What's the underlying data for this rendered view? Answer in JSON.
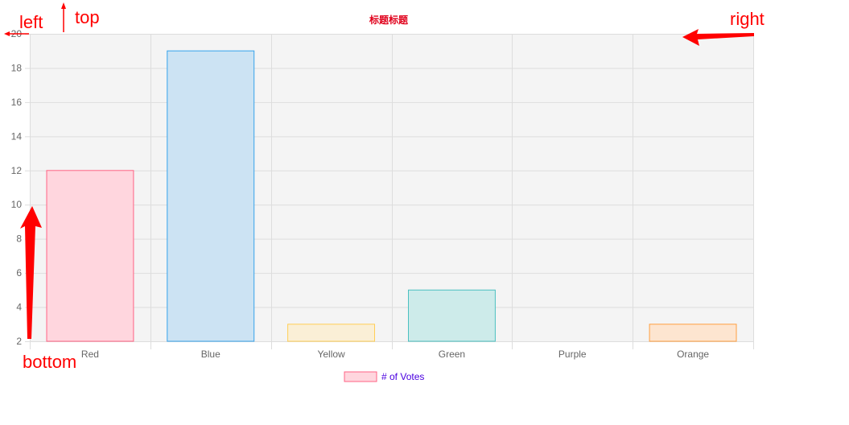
{
  "chart_data": {
    "type": "bar",
    "title": "标题标题",
    "categories": [
      "Red",
      "Blue",
      "Yellow",
      "Green",
      "Purple",
      "Orange"
    ],
    "series": [
      {
        "name": "# of Votes",
        "values": [
          12,
          19,
          3,
          5,
          2,
          3
        ],
        "fill_colors": [
          "#ffd6de",
          "#cce3f3",
          "#faefd6",
          "#cdebea",
          "#e2d6f7",
          "#fde5d0"
        ],
        "border_colors": [
          "#ff6384",
          "#36a2eb",
          "#ffce56",
          "#4bc0c0",
          "#9966ff",
          "#ff9f40"
        ]
      }
    ],
    "ylim": [
      2,
      20
    ],
    "yticks": [
      2,
      4,
      6,
      8,
      10,
      12,
      14,
      16,
      18,
      20
    ],
    "grid": true,
    "legend_position": "bottom",
    "plot_background": "#f4f4f4",
    "grid_color": "#dddddd"
  },
  "annotations": {
    "left": "left",
    "top": "top",
    "right": "right",
    "bottom": "bottom",
    "color": "#ff0000"
  }
}
